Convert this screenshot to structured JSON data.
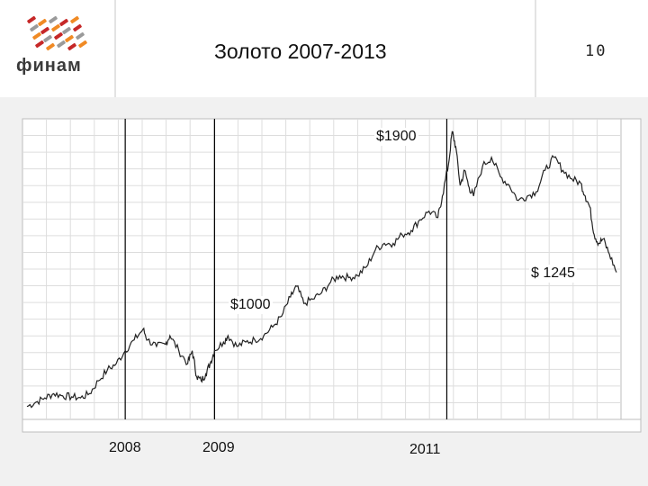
{
  "slide": {
    "logo_text": "финам",
    "title": "Золото 2007-2013",
    "number": "10"
  },
  "annotations": {
    "peak": "$1900",
    "last": "$ 1245",
    "mid": "$1000"
  },
  "markers": {
    "y2008": "2008",
    "y2009": "2009",
    "y2011": "2011"
  },
  "colors": {
    "line": "#222222",
    "grid": "#dddddd",
    "marker_line": "#000000",
    "logo_red": "#c62828",
    "logo_orange": "#f08a24",
    "logo_gray": "#9a9a9a"
  },
  "chart_data": {
    "type": "line",
    "title": "Золото 2007-2013",
    "xlabel": "",
    "ylabel": "",
    "xlim": [
      2006.85,
      2013.55
    ],
    "ylim": [
      560,
      1960
    ],
    "grid": true,
    "series": [
      {
        "values": [
          [
            2006.9,
            620
          ],
          [
            2007.0,
            640
          ],
          [
            2007.1,
            660
          ],
          [
            2007.2,
            680
          ],
          [
            2007.3,
            670
          ],
          [
            2007.4,
            665
          ],
          [
            2007.5,
            660
          ],
          [
            2007.6,
            680
          ],
          [
            2007.7,
            740
          ],
          [
            2007.8,
            790
          ],
          [
            2007.9,
            820
          ],
          [
            2008.0,
            880
          ],
          [
            2008.1,
            930
          ],
          [
            2008.2,
            980
          ],
          [
            2008.25,
            930
          ],
          [
            2008.35,
            900
          ],
          [
            2008.45,
            910
          ],
          [
            2008.5,
            950
          ],
          [
            2008.6,
            880
          ],
          [
            2008.7,
            820
          ],
          [
            2008.75,
            880
          ],
          [
            2008.8,
            760
          ],
          [
            2008.85,
            740
          ],
          [
            2008.9,
            770
          ],
          [
            2008.95,
            820
          ],
          [
            2009.0,
            880
          ],
          [
            2009.1,
            920
          ],
          [
            2009.15,
            950
          ],
          [
            2009.25,
            900
          ],
          [
            2009.35,
            920
          ],
          [
            2009.45,
            930
          ],
          [
            2009.55,
            950
          ],
          [
            2009.65,
            990
          ],
          [
            2009.75,
            1040
          ],
          [
            2009.85,
            1130
          ],
          [
            2009.92,
            1180
          ],
          [
            2010.0,
            1100
          ],
          [
            2010.1,
            1120
          ],
          [
            2010.2,
            1150
          ],
          [
            2010.3,
            1200
          ],
          [
            2010.4,
            1230
          ],
          [
            2010.5,
            1220
          ],
          [
            2010.6,
            1230
          ],
          [
            2010.7,
            1270
          ],
          [
            2010.8,
            1350
          ],
          [
            2010.9,
            1380
          ],
          [
            2011.0,
            1380
          ],
          [
            2011.1,
            1420
          ],
          [
            2011.2,
            1440
          ],
          [
            2011.3,
            1490
          ],
          [
            2011.4,
            1530
          ],
          [
            2011.5,
            1500
          ],
          [
            2011.55,
            1600
          ],
          [
            2011.62,
            1750
          ],
          [
            2011.66,
            1900
          ],
          [
            2011.7,
            1830
          ],
          [
            2011.75,
            1650
          ],
          [
            2011.8,
            1720
          ],
          [
            2011.85,
            1640
          ],
          [
            2011.9,
            1600
          ],
          [
            2012.0,
            1740
          ],
          [
            2012.1,
            1780
          ],
          [
            2012.2,
            1690
          ],
          [
            2012.3,
            1650
          ],
          [
            2012.4,
            1580
          ],
          [
            2012.5,
            1600
          ],
          [
            2012.6,
            1620
          ],
          [
            2012.7,
            1720
          ],
          [
            2012.8,
            1780
          ],
          [
            2012.9,
            1720
          ],
          [
            2013.0,
            1680
          ],
          [
            2013.1,
            1660
          ],
          [
            2013.15,
            1600
          ],
          [
            2013.2,
            1550
          ],
          [
            2013.25,
            1420
          ],
          [
            2013.3,
            1380
          ],
          [
            2013.35,
            1400
          ],
          [
            2013.42,
            1330
          ],
          [
            2013.5,
            1245
          ]
        ]
      }
    ],
    "markers_x": [
      2008.0,
      2009.0,
      2011.6
    ]
  }
}
